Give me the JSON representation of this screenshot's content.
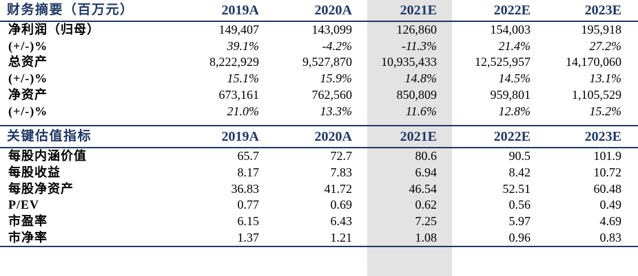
{
  "financial": {
    "title": "财务摘要（百万元）",
    "years": [
      "2019A",
      "2020A",
      "2021E",
      "2022E",
      "2023E"
    ],
    "rows": [
      {
        "label": "净利润（归母）",
        "values": [
          "149,407",
          "143,099",
          "126,860",
          "154,003",
          "195,918"
        ]
      },
      {
        "label": "(+/-)%",
        "values": [
          "39.1%",
          "-4.2%",
          "-11.3%",
          "21.4%",
          "27.2%"
        ]
      },
      {
        "label": "总资产",
        "values": [
          "8,222,929",
          "9,527,870",
          "10,935,433",
          "12,525,957",
          "14,170,060"
        ]
      },
      {
        "label": "(+/-)%",
        "values": [
          "15.1%",
          "15.9%",
          "14.8%",
          "14.5%",
          "13.1%"
        ]
      },
      {
        "label": "净资产",
        "values": [
          "673,161",
          "762,560",
          "850,809",
          "959,801",
          "1,105,529"
        ]
      },
      {
        "label": "(+/-)%",
        "values": [
          "21.0%",
          "13.3%",
          "11.6%",
          "12.8%",
          "15.2%"
        ]
      }
    ]
  },
  "valuation": {
    "title": "关键估值指标",
    "years": [
      "2019A",
      "2020A",
      "2021E",
      "2022E",
      "2023E"
    ],
    "rows": [
      {
        "label": "每股内涵价值",
        "values": [
          "65.7",
          "72.7",
          "80.6",
          "90.5",
          "101.9"
        ]
      },
      {
        "label": "每股收益",
        "values": [
          "8.17",
          "7.83",
          "6.94",
          "8.42",
          "10.72"
        ]
      },
      {
        "label": "每股净资产",
        "values": [
          "36.83",
          "41.72",
          "46.54",
          "52.51",
          "60.48"
        ]
      },
      {
        "label": "P/EV",
        "values": [
          "0.77",
          "0.69",
          "0.62",
          "0.56",
          "0.49"
        ]
      },
      {
        "label": "市盈率",
        "values": [
          "6.15",
          "6.43",
          "7.25",
          "5.97",
          "4.69"
        ]
      },
      {
        "label": "市净率",
        "values": [
          "1.37",
          "1.21",
          "1.08",
          "0.96",
          "0.83"
        ]
      }
    ]
  }
}
